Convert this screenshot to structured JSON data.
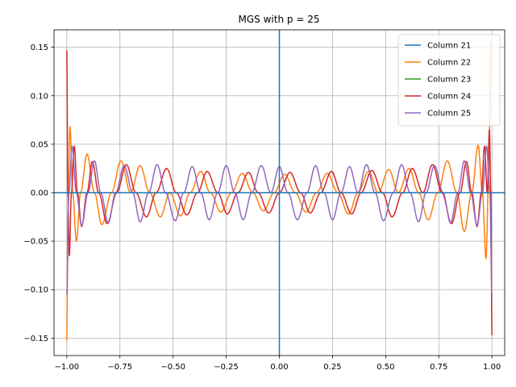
{
  "chart_data": {
    "type": "line",
    "title": "MGS with p = 25",
    "xlabel": "",
    "ylabel": "",
    "xlim": [
      -1.06,
      1.06
    ],
    "ylim": [
      -0.168,
      0.168
    ],
    "xticks": [
      -1.0,
      -0.75,
      -0.5,
      -0.25,
      0.0,
      0.25,
      0.5,
      0.75,
      1.0
    ],
    "xtick_labels": [
      "−1.00",
      "−0.75",
      "−0.50",
      "−0.25",
      "0.00",
      "0.25",
      "0.50",
      "0.75",
      "1.00"
    ],
    "yticks": [
      -0.15,
      -0.1,
      -0.05,
      0.0,
      0.05,
      0.1,
      0.15
    ],
    "ytick_labels": [
      "−0.15",
      "−0.10",
      "−0.05",
      "0.00",
      "0.05",
      "0.10",
      "0.15"
    ],
    "grid": true,
    "legend_position": "top-right",
    "reference_lines": {
      "x": 0,
      "y": 0,
      "color": "#1f77b4"
    },
    "series": [
      {
        "name": "Column 21",
        "color": "#1f77b4",
        "x": [],
        "y": []
      },
      {
        "name": "Column 22",
        "color": "#ff7f0e",
        "x": [
          -1.0,
          -0.995,
          -0.985,
          -0.972,
          -0.955,
          -0.935,
          -0.905,
          -0.87,
          -0.835,
          -0.79,
          -0.745,
          -0.7,
          -0.655,
          -0.61,
          -0.56,
          -0.515,
          -0.465,
          -0.42,
          -0.37,
          -0.325,
          -0.275,
          -0.225,
          -0.175,
          -0.125,
          -0.075,
          -0.025,
          0.025,
          0.075,
          0.125,
          0.175,
          0.225,
          0.275,
          0.325,
          0.37,
          0.42,
          0.465,
          0.515,
          0.56,
          0.61,
          0.655,
          0.7,
          0.745,
          0.79,
          0.835,
          0.87,
          0.905,
          0.935,
          0.955,
          0.972,
          0.985,
          0.995,
          1.0
        ],
        "y": [
          -0.153,
          -0.02,
          0.068,
          0.0,
          -0.05,
          0.0,
          0.04,
          0.0,
          -0.033,
          0.0,
          0.033,
          0.0,
          0.028,
          0.0,
          -0.025,
          0.0,
          -0.024,
          0.0,
          0.022,
          0.0,
          -0.02,
          0.0,
          0.02,
          0.0,
          -0.019,
          0.0,
          0.019,
          0.0,
          -0.02,
          0.0,
          0.02,
          0.0,
          -0.022,
          0.0,
          0.022,
          0.0,
          0.024,
          0.0,
          0.025,
          0.0,
          -0.028,
          0.0,
          0.033,
          0.0,
          -0.04,
          0.0,
          0.049,
          0.0,
          -0.068,
          0.02,
          0.153,
          0.153
        ]
      },
      {
        "name": "Column 23",
        "color": "#2ca02c",
        "x": [],
        "y": []
      },
      {
        "name": "Column 24",
        "color": "#d62728",
        "x": [
          -1.0,
          -0.995,
          -0.988,
          -0.978,
          -0.965,
          -0.95,
          -0.93,
          -0.905,
          -0.88,
          -0.85,
          -0.81,
          -0.765,
          -0.72,
          -0.675,
          -0.625,
          -0.58,
          -0.53,
          -0.485,
          -0.435,
          -0.385,
          -0.34,
          -0.29,
          -0.245,
          -0.195,
          -0.145,
          -0.1,
          -0.05,
          0.0,
          0.05,
          0.1,
          0.145,
          0.195,
          0.245,
          0.29,
          0.34,
          0.385,
          0.435,
          0.485,
          0.53,
          0.58,
          0.625,
          0.675,
          0.72,
          0.765,
          0.81,
          0.85,
          0.88,
          0.905,
          0.93,
          0.95,
          0.965,
          0.978,
          0.988,
          0.995,
          1.0
        ],
        "y": [
          0.147,
          0.0,
          -0.065,
          0.0,
          0.048,
          0.0,
          -0.035,
          0.0,
          0.032,
          0.0,
          -0.032,
          0.0,
          0.029,
          0.0,
          -0.025,
          0.0,
          0.025,
          0.0,
          -0.023,
          0.0,
          0.022,
          0.0,
          -0.022,
          0.0,
          0.021,
          0.0,
          -0.021,
          0.0,
          0.021,
          0.0,
          -0.021,
          0.0,
          0.022,
          0.0,
          -0.022,
          0.0,
          0.023,
          0.0,
          -0.025,
          0.0,
          0.025,
          0.0,
          0.029,
          0.0,
          -0.032,
          0.0,
          0.032,
          0.0,
          -0.035,
          0.0,
          0.048,
          0.0,
          0.065,
          0.0,
          -0.147
        ]
      },
      {
        "name": "Column 25",
        "color": "#9467bd",
        "x": [
          -1.0,
          -0.99,
          -0.975,
          -0.955,
          -0.93,
          -0.9,
          -0.87,
          -0.84,
          -0.805,
          -0.77,
          -0.73,
          -0.69,
          -0.655,
          -0.615,
          -0.575,
          -0.535,
          -0.49,
          -0.45,
          -0.41,
          -0.37,
          -0.33,
          -0.29,
          -0.25,
          -0.21,
          -0.17,
          -0.13,
          -0.085,
          -0.04,
          0.0,
          0.04,
          0.085,
          0.13,
          0.17,
          0.21,
          0.25,
          0.29,
          0.33,
          0.37,
          0.41,
          0.45,
          0.49,
          0.535,
          0.575,
          0.615,
          0.655,
          0.69,
          0.73,
          0.77,
          0.805,
          0.84,
          0.87,
          0.9,
          0.93,
          0.955,
          0.975,
          0.99,
          1.0
        ],
        "y": [
          -0.105,
          0.0,
          0.048,
          0.0,
          -0.034,
          0.0,
          0.033,
          0.0,
          -0.031,
          0.0,
          0.028,
          0.0,
          -0.03,
          0.0,
          0.029,
          0.0,
          -0.029,
          0.0,
          0.027,
          0.0,
          -0.028,
          0.0,
          0.028,
          0.0,
          -0.028,
          0.0,
          0.028,
          0.0,
          0.027,
          0.0,
          -0.028,
          0.0,
          0.028,
          0.0,
          -0.028,
          0.0,
          0.027,
          0.0,
          0.029,
          0.0,
          -0.029,
          0.0,
          0.029,
          0.0,
          -0.03,
          0.0,
          0.028,
          0.0,
          -0.031,
          0.0,
          0.033,
          0.0,
          -0.034,
          0.0,
          0.048,
          0.0,
          -0.105
        ]
      }
    ]
  }
}
